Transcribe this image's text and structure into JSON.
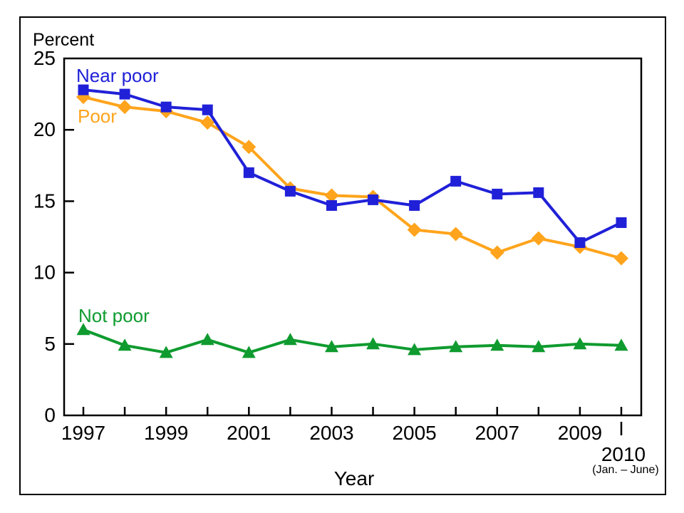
{
  "chart_data": {
    "type": "line",
    "title": "",
    "ylabel": "Percent",
    "xlabel": "Year",
    "ylim": [
      0,
      25
    ],
    "y_ticks": [
      0,
      5,
      10,
      15,
      20,
      25
    ],
    "grid": false,
    "legend_position": "inline-labels",
    "x": [
      1997,
      1998,
      1999,
      2000,
      2001,
      2002,
      2003,
      2004,
      2005,
      2006,
      2007,
      2008,
      2009,
      2010
    ],
    "x_labeled_years": [
      1997,
      1999,
      2001,
      2003,
      2005,
      2007,
      2009
    ],
    "final_tick": {
      "label": "2010",
      "sublabel": "(Jan. – June)"
    },
    "series": [
      {
        "name": "Near poor",
        "color": "#2020d8",
        "marker": "square",
        "values": [
          22.8,
          22.5,
          21.6,
          21.4,
          17.0,
          15.7,
          14.7,
          15.1,
          14.7,
          16.4,
          15.5,
          15.6,
          12.1,
          13.5
        ]
      },
      {
        "name": "Poor",
        "color": "#ffa41c",
        "marker": "diamond",
        "values": [
          22.3,
          21.6,
          21.3,
          20.5,
          18.8,
          15.9,
          15.4,
          15.3,
          13.0,
          12.7,
          11.4,
          12.4,
          11.8,
          11.0
        ]
      },
      {
        "name": "Not poor",
        "color": "#0f9b2f",
        "marker": "triangle",
        "values": [
          6.0,
          4.9,
          4.4,
          5.3,
          4.4,
          5.3,
          4.8,
          5.0,
          4.6,
          4.8,
          4.9,
          4.8,
          5.0,
          4.9
        ]
      }
    ]
  }
}
